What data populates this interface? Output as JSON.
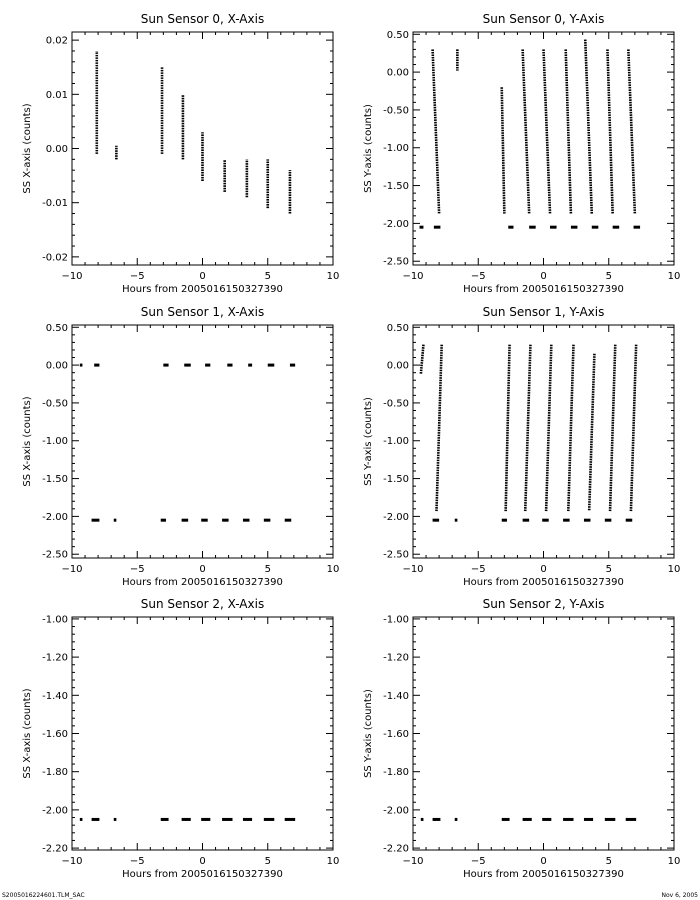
{
  "footer": {
    "left": "S2005016224601.TLM_SAC",
    "right": "Nov 6, 2005"
  },
  "chart_data": [
    {
      "type": "scatter",
      "title": "Sun Sensor 0, X-Axis",
      "xlabel": "Hours from 2005016150327390",
      "ylabel": "SS X-axis (counts)",
      "xlim": [
        -10,
        10
      ],
      "ylim": [
        -0.0215,
        0.0215
      ],
      "xticks": [
        -10,
        -5,
        0,
        5,
        10
      ],
      "yticks": [
        -0.02,
        -0.01,
        0.0,
        0.01,
        0.02
      ],
      "ytick_labels": [
        "-0.02",
        "-0.01",
        "0.00",
        "0.01",
        "0.02"
      ],
      "segments": [
        {
          "x": -8.1,
          "y0": -0.001,
          "y1": 0.018
        },
        {
          "x": -6.6,
          "y0": -0.002,
          "y1": 0.0005
        },
        {
          "x": -3.1,
          "y0": -0.001,
          "y1": 0.015
        },
        {
          "x": -1.5,
          "y0": -0.002,
          "y1": 0.01
        },
        {
          "x": 0.0,
          "y0": -0.006,
          "y1": 0.003
        },
        {
          "x": 1.7,
          "y0": -0.008,
          "y1": -0.002
        },
        {
          "x": 3.4,
          "y0": -0.009,
          "y1": -0.002
        },
        {
          "x": 5.0,
          "y0": -0.011,
          "y1": -0.002
        },
        {
          "x": 6.7,
          "y0": -0.012,
          "y1": -0.004
        }
      ],
      "flat": []
    },
    {
      "type": "scatter",
      "title": "Sun Sensor 0, Y-Axis",
      "xlabel": "Hours from 2005016150327390",
      "ylabel": "SS Y-axis (counts)",
      "xlim": [
        -10,
        10
      ],
      "ylim": [
        -2.55,
        0.53
      ],
      "xticks": [
        -10,
        -5,
        0,
        5,
        10
      ],
      "yticks": [
        -2.5,
        -2.0,
        -1.5,
        -1.0,
        -0.5,
        0.0,
        0.5
      ],
      "ytick_labels": [
        "-2.50",
        "-2.00",
        "-1.50",
        "-1.00",
        "-0.50",
        "0.00",
        "0.50"
      ],
      "segments": [
        {
          "x0": -8.5,
          "x1": -8.0,
          "y0": 0.3,
          "y1": -1.87
        },
        {
          "x0": -6.6,
          "x1": -6.6,
          "y0": 0.3,
          "y1": 0.02
        },
        {
          "x0": -3.2,
          "x1": -3.0,
          "y0": -0.2,
          "y1": -1.87
        },
        {
          "x0": -1.6,
          "x1": -1.1,
          "y0": 0.3,
          "y1": -1.87
        },
        {
          "x0": 0.0,
          "x1": 0.5,
          "y0": 0.3,
          "y1": -1.87
        },
        {
          "x0": 1.7,
          "x1": 2.1,
          "y0": 0.3,
          "y1": -1.87
        },
        {
          "x0": 3.2,
          "x1": 3.7,
          "y0": 0.43,
          "y1": -1.87
        },
        {
          "x0": 4.9,
          "x1": 5.3,
          "y0": 0.3,
          "y1": -1.87
        },
        {
          "x0": 6.5,
          "x1": 7.0,
          "y0": 0.3,
          "y1": -1.87
        }
      ],
      "flat": [
        {
          "x0": -9.5,
          "x1": -9.2,
          "y": -2.05
        },
        {
          "x0": -8.4,
          "x1": -7.9,
          "y": -2.05
        },
        {
          "x0": -2.7,
          "x1": -2.3,
          "y": -2.05
        },
        {
          "x0": -1.1,
          "x1": -0.6,
          "y": -2.05
        },
        {
          "x0": 0.5,
          "x1": 1.0,
          "y": -2.05
        },
        {
          "x0": 2.1,
          "x1": 2.6,
          "y": -2.05
        },
        {
          "x0": 3.7,
          "x1": 4.2,
          "y": -2.05
        },
        {
          "x0": 5.3,
          "x1": 5.8,
          "y": -2.05
        },
        {
          "x0": 6.9,
          "x1": 7.4,
          "y": -2.05
        }
      ]
    },
    {
      "type": "scatter",
      "title": "Sun Sensor 1, X-Axis",
      "xlabel": "Hours from 2005016150327390",
      "ylabel": "SS X-axis (counts)",
      "xlim": [
        -10,
        10
      ],
      "ylim": [
        -2.55,
        0.53
      ],
      "xticks": [
        -10,
        -5,
        0,
        5,
        10
      ],
      "yticks": [
        -2.5,
        -2.0,
        -1.5,
        -1.0,
        -0.5,
        0.0,
        0.5
      ],
      "ytick_labels": [
        "-2.50",
        "-2.00",
        "-1.50",
        "-1.00",
        "-0.50",
        "0.00",
        "0.50"
      ],
      "segments": [],
      "flat": [
        {
          "x0": -9.4,
          "x1": -9.2,
          "y": 0.0
        },
        {
          "x0": -8.3,
          "x1": -7.9,
          "y": 0.0
        },
        {
          "x0": -3.0,
          "x1": -2.6,
          "y": 0.0
        },
        {
          "x0": -1.4,
          "x1": -0.9,
          "y": 0.0
        },
        {
          "x0": 0.2,
          "x1": 0.6,
          "y": 0.0
        },
        {
          "x0": 1.9,
          "x1": 2.3,
          "y": 0.0
        },
        {
          "x0": 3.5,
          "x1": 3.8,
          "y": 0.0
        },
        {
          "x0": 5.0,
          "x1": 5.5,
          "y": 0.0
        },
        {
          "x0": 6.7,
          "x1": 7.1,
          "y": 0.0
        },
        {
          "x0": -8.5,
          "x1": -7.9,
          "y": -2.05
        },
        {
          "x0": -6.8,
          "x1": -6.6,
          "y": -2.05
        },
        {
          "x0": -3.2,
          "x1": -2.8,
          "y": -2.05
        },
        {
          "x0": -1.6,
          "x1": -1.1,
          "y": -2.05
        },
        {
          "x0": -0.1,
          "x1": 0.4,
          "y": -2.05
        },
        {
          "x0": 1.5,
          "x1": 2.0,
          "y": -2.05
        },
        {
          "x0": 3.1,
          "x1": 3.6,
          "y": -2.05
        },
        {
          "x0": 4.7,
          "x1": 5.2,
          "y": -2.05
        },
        {
          "x0": 6.3,
          "x1": 6.8,
          "y": -2.05
        }
      ]
    },
    {
      "type": "scatter",
      "title": "Sun Sensor 1, Y-Axis",
      "xlabel": "Hours from 2005016150327390",
      "ylabel": "SS Y-axis (counts)",
      "xlim": [
        -10,
        10
      ],
      "ylim": [
        -2.55,
        0.53
      ],
      "xticks": [
        -10,
        -5,
        0,
        5,
        10
      ],
      "yticks": [
        -2.5,
        -2.0,
        -1.5,
        -1.0,
        -0.5,
        0.0,
        0.5
      ],
      "ytick_labels": [
        "-2.50",
        "-2.00",
        "-1.50",
        "-1.00",
        "-0.50",
        "0.00",
        "0.50"
      ],
      "segments": [
        {
          "x0": -9.2,
          "x1": -9.4,
          "y0": 0.27,
          "y1": -0.12
        },
        {
          "x0": -7.8,
          "x1": -8.2,
          "y0": 0.27,
          "y1": -1.93
        },
        {
          "x0": -2.6,
          "x1": -2.9,
          "y0": 0.27,
          "y1": -1.93
        },
        {
          "x0": -1.0,
          "x1": -1.4,
          "y0": 0.27,
          "y1": -1.93
        },
        {
          "x0": 0.6,
          "x1": 0.2,
          "y0": 0.27,
          "y1": -1.93
        },
        {
          "x0": 2.3,
          "x1": 1.9,
          "y0": 0.27,
          "y1": -1.93
        },
        {
          "x0": 3.9,
          "x1": 3.5,
          "y0": 0.15,
          "y1": -1.93
        },
        {
          "x0": 5.5,
          "x1": 5.1,
          "y0": 0.27,
          "y1": -1.93
        },
        {
          "x0": 7.1,
          "x1": 6.7,
          "y0": 0.27,
          "y1": -1.93
        }
      ],
      "flat": [
        {
          "x0": -8.5,
          "x1": -8.0,
          "y": -2.05
        },
        {
          "x0": -6.8,
          "x1": -6.6,
          "y": -2.05
        },
        {
          "x0": -3.2,
          "x1": -2.8,
          "y": -2.05
        },
        {
          "x0": -1.6,
          "x1": -1.1,
          "y": -2.05
        },
        {
          "x0": -0.1,
          "x1": 0.4,
          "y": -2.05
        },
        {
          "x0": 1.5,
          "x1": 2.0,
          "y": -2.05
        },
        {
          "x0": 3.1,
          "x1": 3.6,
          "y": -2.05
        },
        {
          "x0": 4.7,
          "x1": 5.2,
          "y": -2.05
        },
        {
          "x0": 6.3,
          "x1": 6.8,
          "y": -2.05
        }
      ]
    },
    {
      "type": "scatter",
      "title": "Sun Sensor 2, X-Axis",
      "xlabel": "Hours from 2005016150327390",
      "ylabel": "SS X-axis (counts)",
      "xlim": [
        -10,
        10
      ],
      "ylim": [
        -2.21,
        -0.99
      ],
      "xticks": [
        -10,
        -5,
        0,
        5,
        10
      ],
      "yticks": [
        -2.2,
        -2.0,
        -1.8,
        -1.6,
        -1.4,
        -1.2,
        -1.0
      ],
      "ytick_labels": [
        "-2.20",
        "-2.00",
        "-1.80",
        "-1.60",
        "-1.40",
        "-1.20",
        "-1.00"
      ],
      "segments": [],
      "flat": [
        {
          "x0": -9.4,
          "x1": -9.2,
          "y": -2.05
        },
        {
          "x0": -8.5,
          "x1": -7.9,
          "y": -2.05
        },
        {
          "x0": -6.8,
          "x1": -6.6,
          "y": -2.05
        },
        {
          "x0": -3.2,
          "x1": -2.6,
          "y": -2.05
        },
        {
          "x0": -1.6,
          "x1": -0.9,
          "y": -2.05
        },
        {
          "x0": -0.1,
          "x1": 0.6,
          "y": -2.05
        },
        {
          "x0": 1.5,
          "x1": 2.3,
          "y": -2.05
        },
        {
          "x0": 3.1,
          "x1": 3.8,
          "y": -2.05
        },
        {
          "x0": 4.7,
          "x1": 5.5,
          "y": -2.05
        },
        {
          "x0": 6.3,
          "x1": 7.1,
          "y": -2.05
        }
      ]
    },
    {
      "type": "scatter",
      "title": "Sun Sensor 2, Y-Axis",
      "xlabel": "Hours from 2005016150327390",
      "ylabel": "SS Y-axis (counts)",
      "xlim": [
        -10,
        10
      ],
      "ylim": [
        -2.21,
        -0.99
      ],
      "xticks": [
        -10,
        -5,
        0,
        5,
        10
      ],
      "yticks": [
        -2.2,
        -2.0,
        -1.8,
        -1.6,
        -1.4,
        -1.2,
        -1.0
      ],
      "ytick_labels": [
        "-2.20",
        "-2.00",
        "-1.80",
        "-1.60",
        "-1.40",
        "-1.20",
        "-1.00"
      ],
      "segments": [],
      "flat": [
        {
          "x0": -9.4,
          "x1": -9.2,
          "y": -2.05
        },
        {
          "x0": -8.5,
          "x1": -7.9,
          "y": -2.05
        },
        {
          "x0": -6.8,
          "x1": -6.6,
          "y": -2.05
        },
        {
          "x0": -3.2,
          "x1": -2.6,
          "y": -2.05
        },
        {
          "x0": -1.6,
          "x1": -0.9,
          "y": -2.05
        },
        {
          "x0": -0.1,
          "x1": 0.6,
          "y": -2.05
        },
        {
          "x0": 1.5,
          "x1": 2.3,
          "y": -2.05
        },
        {
          "x0": 3.1,
          "x1": 3.8,
          "y": -2.05
        },
        {
          "x0": 4.7,
          "x1": 5.5,
          "y": -2.05
        },
        {
          "x0": 6.3,
          "x1": 7.1,
          "y": -2.05
        }
      ]
    }
  ]
}
